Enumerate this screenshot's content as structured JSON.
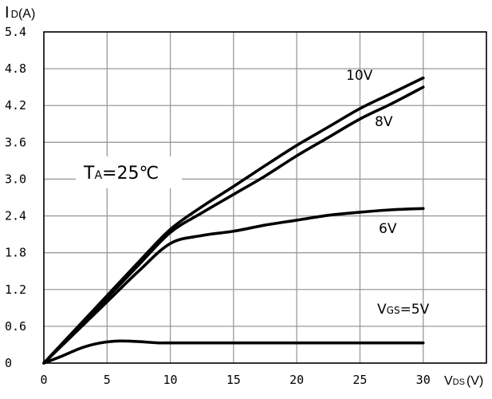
{
  "chart_data": {
    "type": "line",
    "title": "",
    "xlabel_main": "V",
    "xlabel_sub": "DS",
    "xlabel_unit": "(V)",
    "ylabel_main": "I",
    "ylabel_sub": "D",
    "ylabel_unit": "(A)",
    "xlim": [
      0,
      35
    ],
    "ylim": [
      0,
      5.4
    ],
    "x_ticks": [
      0,
      5,
      10,
      15,
      20,
      25,
      30
    ],
    "x_tick_labels": [
      "0",
      "5",
      "10",
      "15",
      "20",
      "25",
      "30"
    ],
    "y_ticks": [
      0,
      0.6,
      1.2,
      1.8,
      2.4,
      3.0,
      3.6,
      4.2,
      4.8,
      5.4
    ],
    "y_tick_labels": [
      "0",
      "0.6",
      "1.2",
      "1.8",
      "2.4",
      "3.0",
      "3.6",
      "4.2",
      "4.8",
      "5.4"
    ],
    "grid": true,
    "annotation": {
      "main": "T",
      "sub": "A",
      "rest": "=25℃"
    },
    "series": [
      {
        "name": "10V",
        "label_main": "10V",
        "label_sub": "",
        "label_rest": "",
        "x": [
          0,
          2.5,
          5,
          7.5,
          10,
          12.5,
          15,
          17.5,
          20,
          22.5,
          25,
          27.5,
          30
        ],
        "y": [
          0,
          0.55,
          1.1,
          1.65,
          2.18,
          2.55,
          2.88,
          3.22,
          3.55,
          3.85,
          4.15,
          4.4,
          4.65
        ]
      },
      {
        "name": "8V",
        "label_main": "8V",
        "label_sub": "",
        "label_rest": "",
        "x": [
          0,
          2.5,
          5,
          7.5,
          10,
          12.5,
          15,
          17.5,
          20,
          22.5,
          25,
          27.5,
          30
        ],
        "y": [
          0,
          0.52,
          1.06,
          1.6,
          2.13,
          2.45,
          2.75,
          3.05,
          3.38,
          3.68,
          3.98,
          4.23,
          4.5
        ]
      },
      {
        "name": "6V",
        "label_main": "6V",
        "label_sub": "",
        "label_rest": "",
        "x": [
          0,
          2.5,
          5,
          7.5,
          10,
          12.5,
          15,
          17.5,
          20,
          22.5,
          25,
          27.5,
          30
        ],
        "y": [
          0,
          0.5,
          1.0,
          1.5,
          1.95,
          2.08,
          2.15,
          2.25,
          2.33,
          2.41,
          2.46,
          2.5,
          2.52
        ]
      },
      {
        "name": "VGS=5V",
        "label_main": "V",
        "label_sub": "GS",
        "label_rest": "=5V",
        "x": [
          0,
          1.5,
          3,
          4.5,
          6,
          7.5,
          9,
          10,
          12,
          15,
          20,
          25,
          30
        ],
        "y": [
          0,
          0.12,
          0.25,
          0.33,
          0.36,
          0.35,
          0.33,
          0.33,
          0.33,
          0.33,
          0.33,
          0.33,
          0.33
        ]
      }
    ]
  }
}
